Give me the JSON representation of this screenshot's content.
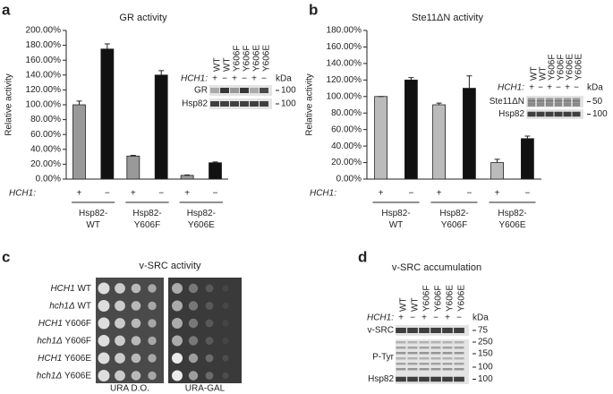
{
  "panels": [
    "a",
    "b",
    "c",
    "d"
  ],
  "chart_data": [
    {
      "type": "bar",
      "title": "GR activity",
      "y_label": "Relative activity",
      "row_label": "HCH1:",
      "categories": [
        "Hsp82-\nWT",
        "Hsp82-\nY606F",
        "Hsp82-\nY606E"
      ],
      "series": [
        {
          "name": "+",
          "color": "#999999",
          "values": [
            100,
            31,
            5
          ],
          "errors": [
            5,
            1,
            0.5
          ]
        },
        {
          "name": "−",
          "color": "#111111",
          "values": [
            175,
            140,
            22
          ],
          "errors": [
            7,
            6,
            1
          ]
        }
      ],
      "ylim": [
        0,
        200
      ],
      "yticks": [
        {
          "value": 0,
          "label": "0.00%"
        },
        {
          "value": 20,
          "label": "20.00%"
        },
        {
          "value": 40,
          "label": "40.00%"
        },
        {
          "value": 60,
          "label": "60.00%"
        },
        {
          "value": 80,
          "label": "80.00%"
        },
        {
          "value": 100,
          "label": "100.00%"
        },
        {
          "value": 120,
          "label": "120.00%"
        },
        {
          "value": 140,
          "label": "140.00%"
        },
        {
          "value": 160,
          "label": "160.00%"
        },
        {
          "value": 180,
          "label": "180.00%"
        },
        {
          "value": 200,
          "label": "200.00%"
        }
      ],
      "inset": {
        "lanes": [
          "WT",
          "WT",
          "Y606F",
          "Y606F",
          "Y606E",
          "Y606E"
        ],
        "row_label": "HCH1:",
        "signs": [
          "+",
          "−",
          "+",
          "−",
          "+",
          "−"
        ],
        "unit": "kDa",
        "rows": [
          {
            "name": "GR",
            "markers": [
              "100"
            ]
          },
          {
            "name": "Hsp82",
            "markers": [
              "100"
            ]
          }
        ]
      }
    },
    {
      "type": "bar",
      "title": "Ste11ΔN activity",
      "y_label": "Relative activity",
      "row_label": "HCH1:",
      "categories": [
        "Hsp82-\nWT",
        "Hsp82-\nY606F",
        "Hsp82-\nY606E"
      ],
      "series": [
        {
          "name": "+",
          "color": "#bbbbbb",
          "values": [
            100,
            90,
            20
          ],
          "errors": [
            0,
            2,
            4
          ]
        },
        {
          "name": "−",
          "color": "#111111",
          "values": [
            120,
            110,
            49
          ],
          "errors": [
            3,
            15,
            3
          ]
        }
      ],
      "ylim": [
        0,
        180
      ],
      "yticks": [
        {
          "value": 0,
          "label": "0.00%"
        },
        {
          "value": 20,
          "label": "20.00%"
        },
        {
          "value": 40,
          "label": "40.00%"
        },
        {
          "value": 60,
          "label": "60.00%"
        },
        {
          "value": 80,
          "label": "80.00%"
        },
        {
          "value": 100,
          "label": "100.00%"
        },
        {
          "value": 120,
          "label": "120.00%"
        },
        {
          "value": 140,
          "label": "140.00%"
        },
        {
          "value": 160,
          "label": "160.00%"
        },
        {
          "value": 180,
          "label": "180.00%"
        }
      ],
      "inset": {
        "lanes": [
          "WT",
          "WT",
          "Y606F",
          "Y606F",
          "Y606E",
          "Y606E"
        ],
        "row_label": "HCH1:",
        "signs": [
          "+",
          "−",
          "+",
          "−",
          "+",
          "−"
        ],
        "unit": "kDa",
        "rows": [
          {
            "name": "Ste11ΔN",
            "markers": [
              "50"
            ]
          },
          {
            "name": "Hsp82",
            "markers": [
              "100"
            ]
          }
        ]
      }
    }
  ],
  "spot_assay": {
    "title": "v-SRC activity",
    "rows": [
      "HCH1 WT",
      "hch1Δ WT",
      "HCH1 Y606F",
      "hch1Δ Y606F",
      "HCH1 Y606E",
      "hch1Δ Y606E"
    ],
    "plates": [
      "URA D.O.",
      "URA-GAL"
    ]
  },
  "blot_d": {
    "title": "v-SRC accumulation",
    "lanes": [
      "WT",
      "WT",
      "Y606F",
      "Y606F",
      "Y606E",
      "Y606E"
    ],
    "row_label": "HCH1:",
    "signs": [
      "+",
      "−",
      "+",
      "−",
      "+",
      "−"
    ],
    "unit": "kDa",
    "rows": [
      {
        "name": "v-SRC",
        "markers": [
          "75"
        ]
      },
      {
        "name": "P-Tyr",
        "markers": [
          "250",
          "150",
          "100"
        ]
      },
      {
        "name": "Hsp82",
        "markers": [
          "100"
        ]
      }
    ]
  }
}
